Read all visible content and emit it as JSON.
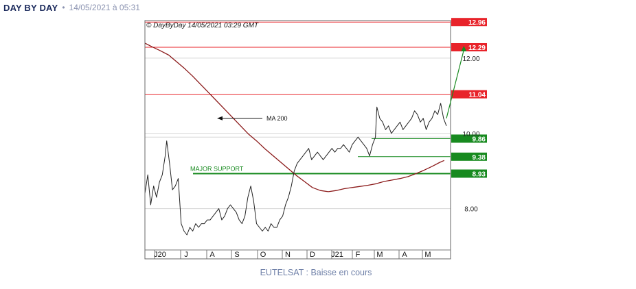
{
  "header": {
    "brand": "DAY BY DAY",
    "separator": "•",
    "timestamp": "14/05/2021 à 05:31"
  },
  "caption": "EUTELSAT : Baisse en cours",
  "chart_data": {
    "type": "line",
    "title": "© DayByDay 14/05/2021 03:29 GMT",
    "x_tick_labels": [
      "J20",
      "J",
      "A",
      "S",
      "O",
      "N",
      "D",
      "J21",
      "F",
      "M",
      "A",
      "M"
    ],
    "y_ticks": [
      8.0,
      10.0,
      12.0
    ],
    "y_tick_labels": [
      "8.00",
      "10.00",
      "12.00"
    ],
    "ylim": [
      6.9,
      13.0
    ],
    "grid": true,
    "series": [
      {
        "name": "MA 200",
        "color": "#8b1a1a",
        "x": [
          0,
          10,
          21,
          33,
          44,
          55,
          66,
          77,
          88,
          99,
          110,
          121,
          132,
          143,
          154,
          165,
          176,
          187,
          198,
          209,
          220,
          231,
          242,
          253,
          264,
          275,
          286,
          297,
          308,
          319,
          330,
          341,
          352,
          363,
          374,
          385,
          396,
          407,
          413
        ],
        "values": [
          12.4,
          12.3,
          12.2,
          12.08,
          11.9,
          11.72,
          11.52,
          11.3,
          11.08,
          10.86,
          10.64,
          10.42,
          10.2,
          9.98,
          9.8,
          9.6,
          9.42,
          9.24,
          9.06,
          8.88,
          8.72,
          8.56,
          8.48,
          8.45,
          8.48,
          8.53,
          8.56,
          8.59,
          8.62,
          8.66,
          8.72,
          8.76,
          8.8,
          8.85,
          8.93,
          9.02,
          9.12,
          9.23,
          9.28
        ]
      },
      {
        "name": "",
        "color": "#222222",
        "x": [
          0,
          4,
          8,
          12,
          16,
          20,
          24,
          28,
          30,
          34,
          38,
          42,
          46,
          50,
          54,
          58,
          62,
          66,
          70,
          74,
          78,
          82,
          86,
          90,
          94,
          98,
          102,
          106,
          110,
          114,
          118,
          122,
          126,
          130,
          134,
          138,
          142,
          146,
          150,
          154,
          158,
          162,
          166,
          170,
          174,
          178,
          182,
          186,
          190,
          194,
          198,
          202,
          206,
          210,
          214,
          218,
          222,
          226,
          230,
          234,
          238,
          242,
          246,
          250,
          254,
          258,
          262,
          266,
          270,
          274,
          278,
          282,
          286,
          290,
          294,
          298,
          302,
          306,
          310,
          314,
          318,
          320,
          324,
          328,
          332,
          336,
          340,
          344,
          348,
          352,
          356,
          360,
          364,
          368,
          372,
          376,
          380,
          384,
          388,
          392,
          396,
          400,
          404,
          408,
          412,
          416
        ],
        "values": [
          8.4,
          8.9,
          8.1,
          8.6,
          8.3,
          8.7,
          8.9,
          9.4,
          9.8,
          9.2,
          8.5,
          8.6,
          8.8,
          7.6,
          7.4,
          7.3,
          7.5,
          7.4,
          7.6,
          7.5,
          7.6,
          7.6,
          7.7,
          7.7,
          7.8,
          7.9,
          8.0,
          7.7,
          7.8,
          8.0,
          8.1,
          8.0,
          7.9,
          7.7,
          7.6,
          7.8,
          8.3,
          8.6,
          8.2,
          7.6,
          7.5,
          7.4,
          7.5,
          7.4,
          7.6,
          7.5,
          7.5,
          7.7,
          7.8,
          8.1,
          8.3,
          8.6,
          9.0,
          9.2,
          9.3,
          9.4,
          9.5,
          9.6,
          9.3,
          9.4,
          9.5,
          9.4,
          9.3,
          9.4,
          9.5,
          9.6,
          9.5,
          9.6,
          9.6,
          9.7,
          9.6,
          9.5,
          9.7,
          9.8,
          9.9,
          9.8,
          9.7,
          9.6,
          9.4,
          9.7,
          9.9,
          10.7,
          10.4,
          10.3,
          10.1,
          10.2,
          10.0,
          10.1,
          10.2,
          10.3,
          10.1,
          10.2,
          10.3,
          10.4,
          10.6,
          10.5,
          10.3,
          10.4,
          10.1,
          10.3,
          10.4,
          10.6,
          10.5,
          10.8,
          10.4,
          10.2
        ]
      }
    ],
    "horizontal_levels": [
      {
        "value": 12.96,
        "label": "12.96",
        "color": "#e8232a",
        "kind": "resistance"
      },
      {
        "value": 12.29,
        "label": "12.29",
        "color": "#e8232a",
        "kind": "resistance"
      },
      {
        "value": 11.04,
        "label": "11.04",
        "color": "#e8232a",
        "kind": "resistance"
      },
      {
        "value": 9.86,
        "label": "9.86",
        "color": "#178a1f",
        "kind": "support"
      },
      {
        "value": 9.38,
        "label": "9.38",
        "color": "#178a1f",
        "kind": "support"
      },
      {
        "value": 8.93,
        "label": "8.93",
        "color": "#178a1f",
        "kind": "support"
      }
    ],
    "annotations": [
      {
        "text": "MA 200",
        "arrow": "points to MA 200 line"
      },
      {
        "text": "MAJOR SUPPORT",
        "color": "#178a1f",
        "attached_to": "8.93"
      }
    ],
    "projection_arrow": {
      "from_value": 10.4,
      "to_value": 12.29,
      "color": "#178a1f"
    }
  }
}
